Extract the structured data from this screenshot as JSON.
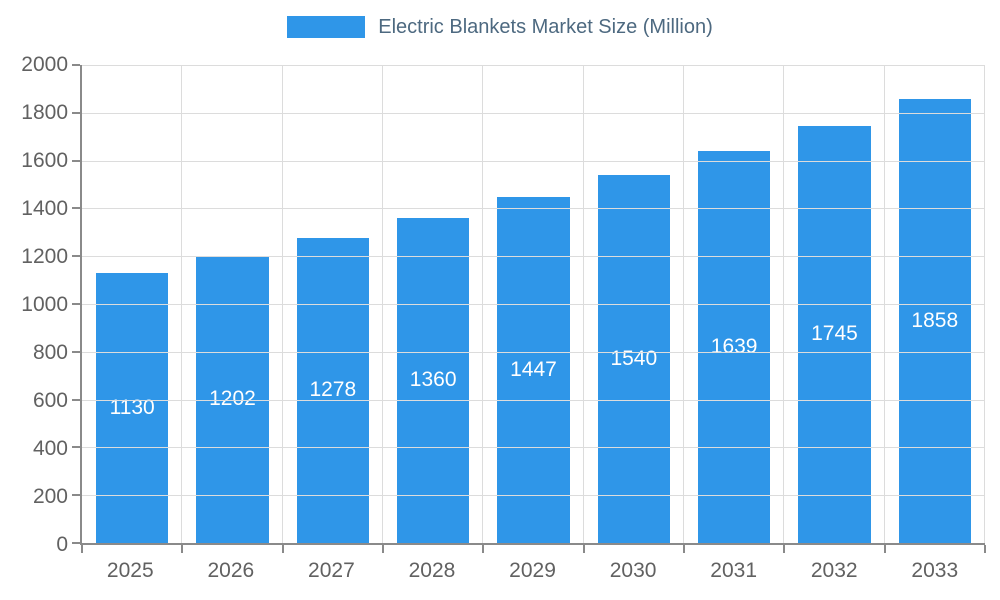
{
  "chart_data": {
    "type": "bar",
    "title": "Electric Blankets Market Size (Million)",
    "categories": [
      "2025",
      "2026",
      "2027",
      "2028",
      "2029",
      "2030",
      "2031",
      "2032",
      "2033"
    ],
    "values": [
      1130,
      1202,
      1278,
      1360,
      1447,
      1540,
      1639,
      1745,
      1858
    ],
    "xlabel": "",
    "ylabel": "",
    "ylim": [
      0,
      2000
    ],
    "ytick_step": 200,
    "grid": true,
    "legend_position": "top",
    "bar_color": "#2f96e8",
    "value_label_color": "#ffffff",
    "axis_label_color": "#616161",
    "title_color": "#4d6980"
  }
}
